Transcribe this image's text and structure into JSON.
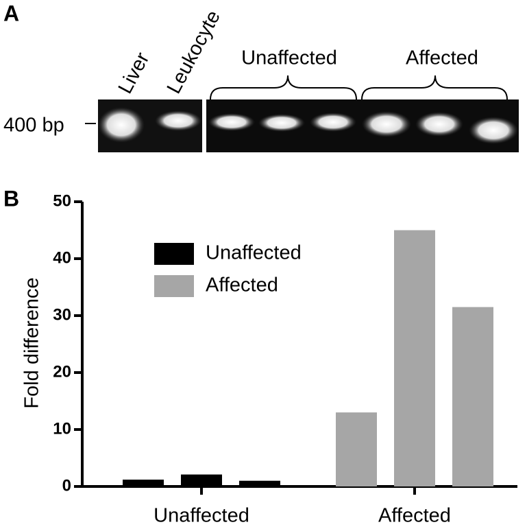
{
  "panel_a": {
    "label": "A",
    "lanes": [
      "Liver",
      "Leukocyte"
    ],
    "groups": [
      "Unaffected",
      "Affected"
    ],
    "marker": "400 bp"
  },
  "chart_data": {
    "type": "bar",
    "panel_label": "B",
    "y_label": "Fold difference",
    "categories": [
      "Unaffected",
      "Affected"
    ],
    "series": [
      {
        "name": "Unaffected",
        "color": "#000000",
        "values": [
          [
            1.2,
            2.1,
            1.0
          ],
          null
        ]
      },
      {
        "name": "Affected",
        "color": "#a6a6a6",
        "values": [
          null,
          [
            13,
            45,
            31.5
          ]
        ]
      }
    ],
    "ylim": [
      0,
      50
    ],
    "yticks": [
      0,
      10,
      20,
      30,
      40,
      50
    ]
  }
}
